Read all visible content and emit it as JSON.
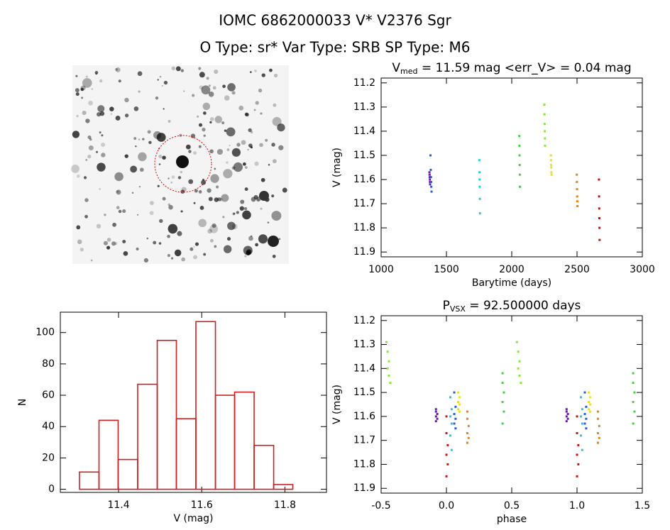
{
  "title": "IOMC 6862000033    V* V2376 Sgr",
  "subtitle": "O Type: sr*  Var Type: SRB  SP Type: M6",
  "chart_data": [
    {
      "type": "scatter",
      "title": {
        "symbol": "V",
        "subscript": "med",
        "text": " = 11.59 mag <err_V> = 0.04 mag"
      },
      "xlabel": "Barytime (days)",
      "ylabel": "V (mag)",
      "xlim": [
        1000,
        3000
      ],
      "xticks": [
        1000,
        1500,
        2000,
        2500,
        3000
      ],
      "ylim": [
        11.92,
        11.18
      ],
      "yticks": [
        11.2,
        11.3,
        11.4,
        11.5,
        11.6,
        11.7,
        11.8,
        11.9
      ],
      "series": [
        {
          "color": "#6a1bb0",
          "x": [
            1370,
            1371,
            1372,
            1373,
            1374,
            1375
          ],
          "values": [
            11.57,
            11.58,
            11.59,
            11.6,
            11.61,
            11.62
          ]
        },
        {
          "color": "#2a5ccc",
          "x": [
            1378,
            1380,
            1382,
            1383,
            1384,
            1386
          ],
          "values": [
            11.5,
            11.56,
            11.59,
            11.61,
            11.63,
            11.65
          ]
        },
        {
          "color": "#22c8e6",
          "x": [
            1752,
            1753,
            1754,
            1755,
            1756,
            1757
          ],
          "values": [
            11.52,
            11.57,
            11.6,
            11.63,
            11.68,
            11.74
          ]
        },
        {
          "color": "#3cd23c",
          "x": [
            2058,
            2059,
            2060,
            2061,
            2062,
            2063
          ],
          "values": [
            11.42,
            11.46,
            11.5,
            11.54,
            11.58,
            11.63
          ]
        },
        {
          "color": "#8ae63a",
          "x": [
            2250,
            2251,
            2252,
            2253,
            2254,
            2255
          ],
          "values": [
            11.29,
            11.33,
            11.37,
            11.4,
            11.43,
            11.46
          ]
        },
        {
          "color": "#e6e020",
          "x": [
            2300,
            2301,
            2302,
            2303,
            2304,
            2305
          ],
          "values": [
            11.5,
            11.52,
            11.54,
            11.55,
            11.57,
            11.58
          ]
        },
        {
          "color": "#f08010",
          "x": [
            2498,
            2499,
            2500,
            2501,
            2502,
            2503
          ],
          "values": [
            11.58,
            11.61,
            11.64,
            11.67,
            11.69,
            11.71
          ]
        },
        {
          "color": "#d01010",
          "x": [
            2668,
            2669,
            2670,
            2671,
            2672,
            2673
          ],
          "values": [
            11.6,
            11.67,
            11.72,
            11.76,
            11.8,
            11.85
          ]
        }
      ]
    },
    {
      "type": "histogram",
      "xlabel": "V (mag)",
      "ylabel": "N",
      "color": "#cc2020",
      "xlim": [
        11.26,
        11.9
      ],
      "xticks": [
        11.4,
        11.6,
        11.8
      ],
      "ylim": [
        -2,
        113
      ],
      "yticks": [
        0,
        20,
        40,
        60,
        80,
        100
      ],
      "bins": [
        11.306,
        11.353,
        11.399,
        11.446,
        11.493,
        11.539,
        11.586,
        11.633,
        11.679,
        11.726,
        11.773,
        11.819
      ],
      "values": [
        11,
        44,
        19,
        67,
        95,
        45,
        107,
        60,
        62,
        28,
        3
      ]
    },
    {
      "type": "scatter",
      "title": {
        "symbol": "P",
        "subscript": "VSX",
        "text": " = 92.500000 days"
      },
      "xlabel": "phase",
      "ylabel": "V (mag)",
      "xlim": [
        -0.5,
        1.5
      ],
      "xticks": [
        {
          "value": -0.5,
          "label": "-0.5"
        },
        {
          "value": 0,
          "label": "0.0"
        },
        0.5,
        {
          "value": 1,
          "label": "1.0"
        },
        1.5
      ],
      "ylim": [
        11.92,
        11.18
      ],
      "yticks": [
        11.2,
        11.3,
        11.4,
        11.5,
        11.6,
        11.7,
        11.8,
        11.9
      ],
      "series": [
        {
          "color": "#6a1bb0",
          "x": [
            -0.08,
            -0.08,
            -0.07,
            -0.08,
            -0.07,
            -0.08,
            0.92,
            0.92,
            0.93,
            0.92,
            0.93,
            0.92
          ],
          "values": [
            11.57,
            11.58,
            11.59,
            11.6,
            11.61,
            11.62,
            11.57,
            11.58,
            11.59,
            11.6,
            11.61,
            11.62
          ]
        },
        {
          "color": "#2a5ccc",
          "x": [
            0.06,
            0.07,
            0.06,
            0.07,
            0.06,
            0.07,
            1.06,
            1.07,
            1.06,
            1.07,
            1.06,
            1.07
          ],
          "values": [
            11.5,
            11.56,
            11.59,
            11.61,
            11.63,
            11.65,
            11.5,
            11.56,
            11.59,
            11.61,
            11.63,
            11.65
          ]
        },
        {
          "color": "#22c8e6",
          "x": [
            0.03,
            0.04,
            0.03,
            0.04,
            0.03,
            0.04,
            1.03,
            1.04,
            1.03,
            1.04,
            1.03,
            1.04
          ],
          "values": [
            11.52,
            11.57,
            11.6,
            11.63,
            11.68,
            11.74,
            11.52,
            11.57,
            11.6,
            11.63,
            11.68,
            11.74
          ]
        },
        {
          "color": "#3cd23c",
          "x": [
            0.43,
            0.43,
            0.44,
            0.43,
            0.44,
            0.43,
            1.43,
            1.43,
            1.44,
            1.43,
            1.44,
            1.43
          ],
          "values": [
            11.42,
            11.46,
            11.5,
            11.54,
            11.58,
            11.63,
            11.42,
            11.46,
            11.5,
            11.54,
            11.58,
            11.63
          ]
        },
        {
          "color": "#8ae63a",
          "x": [
            -0.46,
            -0.45,
            -0.44,
            -0.45,
            -0.44,
            -0.43,
            0.54,
            0.55,
            0.56,
            0.55,
            0.56,
            0.57
          ],
          "values": [
            11.29,
            11.33,
            11.37,
            11.4,
            11.43,
            11.46,
            11.29,
            11.33,
            11.37,
            11.4,
            11.43,
            11.46
          ]
        },
        {
          "color": "#e6e020",
          "x": [
            0.09,
            0.1,
            0.09,
            0.1,
            0.09,
            0.1,
            1.09,
            1.1,
            1.09,
            1.1,
            1.09,
            1.1
          ],
          "values": [
            11.5,
            11.52,
            11.54,
            11.55,
            11.57,
            11.58,
            11.5,
            11.52,
            11.54,
            11.55,
            11.57,
            11.58
          ]
        },
        {
          "color": "#f08010",
          "x": [
            0.16,
            0.16,
            0.17,
            0.16,
            0.17,
            0.16,
            1.16,
            1.16,
            1.17,
            1.16,
            1.17,
            1.16
          ],
          "values": [
            11.58,
            11.61,
            11.64,
            11.67,
            11.69,
            11.71,
            11.58,
            11.61,
            11.64,
            11.67,
            11.69,
            11.71
          ]
        },
        {
          "color": "#d01010",
          "x": [
            0.0,
            0.0,
            0.01,
            0.0,
            0.01,
            0.0,
            1.0,
            1.0,
            1.01,
            1.0,
            1.01,
            1.0
          ],
          "values": [
            11.6,
            11.67,
            11.72,
            11.76,
            11.8,
            11.85,
            11.6,
            11.67,
            11.72,
            11.76,
            11.8,
            11.85
          ]
        }
      ]
    }
  ]
}
